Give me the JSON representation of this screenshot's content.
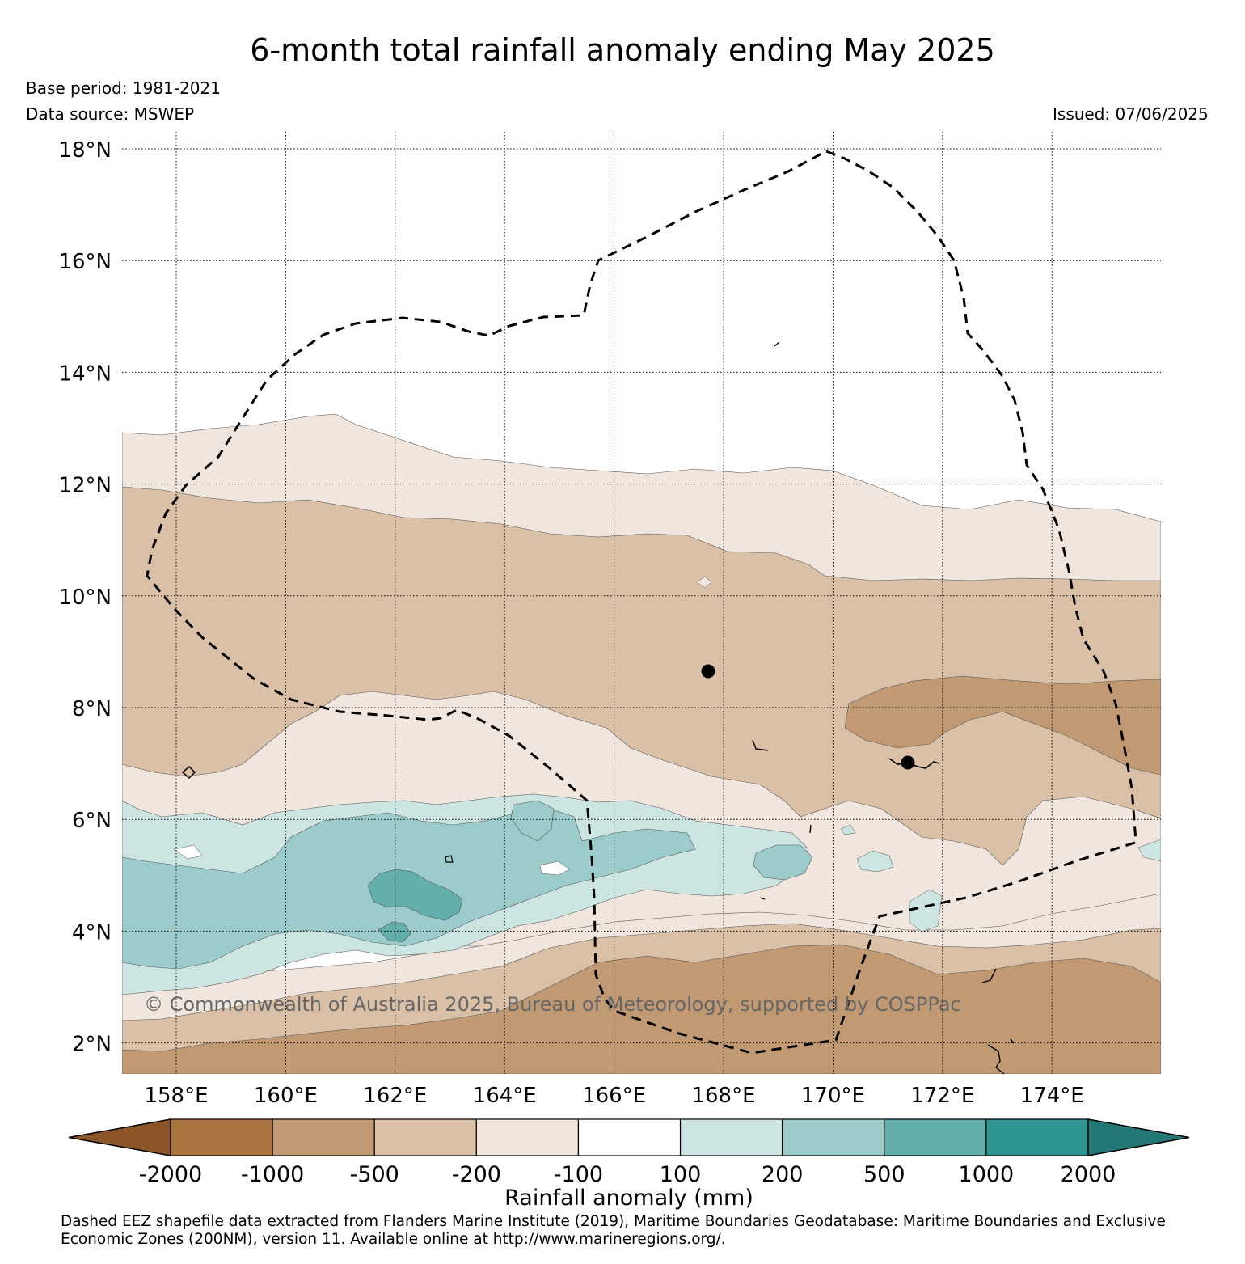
{
  "title": "6-month total rainfall anomaly ending May 2025",
  "base_period": "Base period: 1981-2021",
  "data_source": "Data source: MSWEP",
  "issued": "Issued: 07/06/2025",
  "watermark": "© Commonwealth of Australia 2025, Bureau of Meteorology, supported by COSPPac",
  "colorbar_label": "Rainfall anomaly (mm)",
  "footer": "Dashed EEZ shapefile data extracted from Flanders Marine Institute (2019), Maritime Boundaries Geodatabase: Maritime Boundaries and Exclusive Economic Zones (200NM), version 11. Available online at http://www.marineregions.org/.",
  "map": {
    "lat_ticks": [
      {
        "value": 18,
        "label": "18°N"
      },
      {
        "value": 16,
        "label": "16°N"
      },
      {
        "value": 14,
        "label": "14°N"
      },
      {
        "value": 12,
        "label": "12°N"
      },
      {
        "value": 10,
        "label": "10°N"
      },
      {
        "value": 8,
        "label": "8°N"
      },
      {
        "value": 6,
        "label": "6°N"
      },
      {
        "value": 4,
        "label": "4°N"
      },
      {
        "value": 2,
        "label": "2°N"
      }
    ],
    "lon_ticks": [
      {
        "value": 158,
        "label": "158°E"
      },
      {
        "value": 160,
        "label": "160°E"
      },
      {
        "value": 162,
        "label": "162°E"
      },
      {
        "value": 164,
        "label": "164°E"
      },
      {
        "value": 166,
        "label": "166°E"
      },
      {
        "value": 168,
        "label": "168°E"
      },
      {
        "value": 170,
        "label": "170°E"
      },
      {
        "value": 172,
        "label": "172°E"
      },
      {
        "value": 174,
        "label": "174°E"
      }
    ],
    "lon_range": [
      157,
      176
    ],
    "lat_range": [
      1.4,
      18.3
    ]
  },
  "colorbar": {
    "labels": [
      "-2000",
      "-1000",
      "-500",
      "-200",
      "-100",
      "100",
      "200",
      "500",
      "1000",
      "2000"
    ],
    "colors": [
      "#8c5628",
      "#a97440",
      "#c19a73",
      "#d9c0a7",
      "#f0e6dd",
      "#ffffff",
      "#cce5e3",
      "#9bcbca",
      "#63afac",
      "#2f9590",
      "#237875"
    ]
  },
  "colors": {
    "band_minus_500": "#c19a73",
    "band_minus_200": "#d9c0a7",
    "band_minus_100": "#f0e6dd",
    "band_neutral": "#ffffff",
    "band_plus_100": "#cce5e3",
    "band_plus_200": "#9bcbca",
    "band_plus_500": "#63afac"
  }
}
